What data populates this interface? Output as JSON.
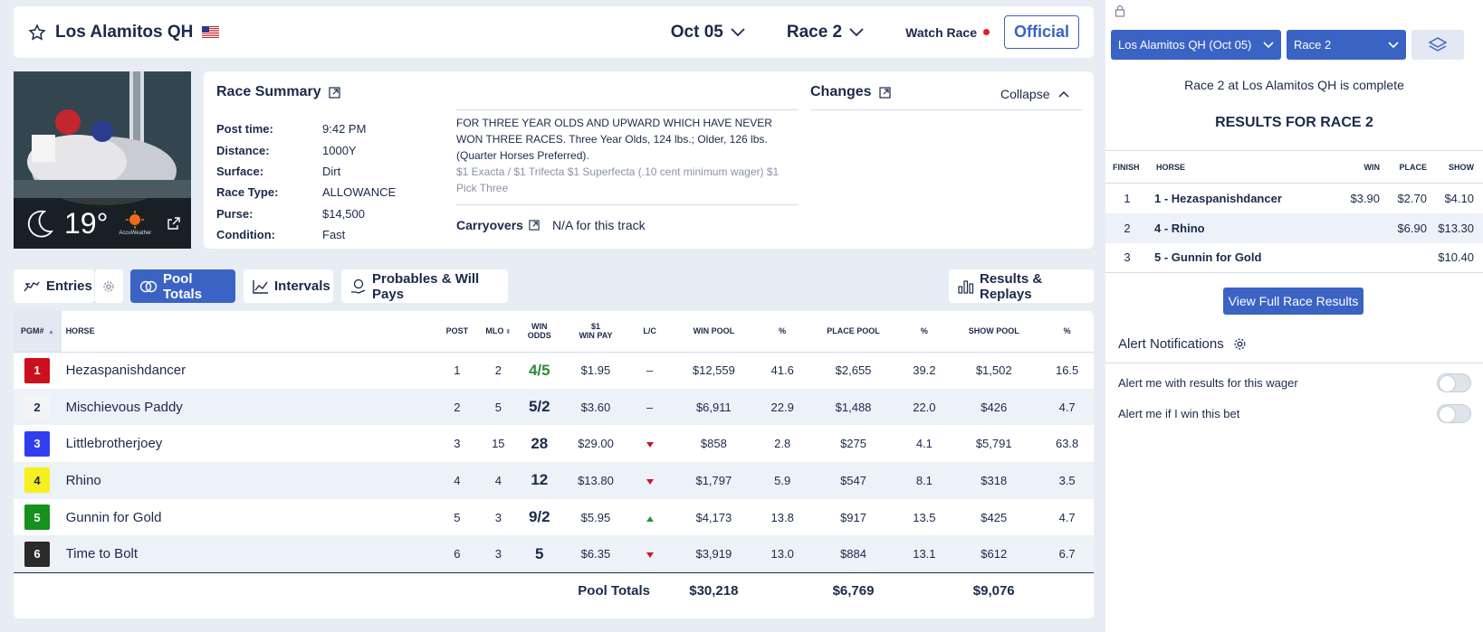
{
  "header": {
    "track": "Los Alamitos QH",
    "date": "Oct 05",
    "race": "Race 2",
    "watch_label": "Watch Race",
    "official_label": "Official"
  },
  "weather": {
    "temp": "19°",
    "brand": "AccuWeather"
  },
  "summary": {
    "title": "Race Summary",
    "fields": [
      {
        "k": "Post time:",
        "v": "9:42 PM"
      },
      {
        "k": "Distance:",
        "v": "1000Y"
      },
      {
        "k": "Surface:",
        "v": "Dirt"
      },
      {
        "k": "Race Type:",
        "v": "ALLOWANCE"
      },
      {
        "k": "Purse:",
        "v": "$14,500"
      },
      {
        "k": "Condition:",
        "v": "Fast"
      }
    ],
    "description": "FOR THREE YEAR OLDS AND UPWARD WHICH HAVE NEVER WON THREE RACES. Three Year Olds, 124 lbs.; Older, 126 lbs. (Quarter Horses Preferred).",
    "description_more": "$1 Exacta / $1 Trifecta $1 Superfecta (.10 cent minimum wager) $1 Pick Three",
    "carryovers_label": "Carryovers",
    "carryovers_value": "N/A for this track",
    "changes_title": "Changes",
    "collapse_label": "Collapse"
  },
  "tabs": {
    "entries": "Entries",
    "pool_totals": "Pool Totals",
    "intervals": "Intervals",
    "probables": "Probables & Will Pays",
    "results": "Results & Replays"
  },
  "pool": {
    "headers": {
      "pgm": "PGM#",
      "horse": "HORSE",
      "post": "POST",
      "mlo": "MLO",
      "win_odds_1": "WIN",
      "win_odds_2": "ODDS",
      "winpay_1": "$1",
      "winpay_2": "WIN PAY",
      "lc": "L/C",
      "win_pool": "WIN POOL",
      "pct": "%",
      "place_pool": "PLACE POOL",
      "show_pool": "SHOW POOL"
    },
    "rows": [
      {
        "pgm": "1",
        "bg": "#cc0f1c",
        "fg": "#ffffff",
        "horse": "Hezaspanishdancer",
        "post": "1",
        "mlo": "2",
        "odds": "4/5",
        "winpay": "$1.95",
        "lc": "–",
        "win": "$12,559",
        "winp": "41.6",
        "place": "$2,655",
        "placep": "39.2",
        "show": "$1,502",
        "showp": "16.5"
      },
      {
        "pgm": "2",
        "bg": "#f4f4f4",
        "fg": "#1b2a4a",
        "horse": "Mischievous Paddy",
        "post": "2",
        "mlo": "5",
        "odds": "5/2",
        "winpay": "$3.60",
        "lc": "–",
        "win": "$6,911",
        "winp": "22.9",
        "place": "$1,488",
        "placep": "22.0",
        "show": "$426",
        "showp": "4.7"
      },
      {
        "pgm": "3",
        "bg": "#2f3ff0",
        "fg": "#ffffff",
        "horse": "Littlebrotherjoey",
        "post": "3",
        "mlo": "15",
        "odds": "28",
        "winpay": "$29.00",
        "lc": "down",
        "win": "$858",
        "winp": "2.8",
        "place": "$275",
        "placep": "4.1",
        "show": "$5,791",
        "showp": "63.8"
      },
      {
        "pgm": "4",
        "bg": "#f6f01e",
        "fg": "#1b2a4a",
        "horse": "Rhino",
        "post": "4",
        "mlo": "4",
        "odds": "12",
        "winpay": "$13.80",
        "lc": "down",
        "win": "$1,797",
        "winp": "5.9",
        "place": "$547",
        "placep": "8.1",
        "show": "$318",
        "showp": "3.5"
      },
      {
        "pgm": "5",
        "bg": "#16911c",
        "fg": "#ffffff",
        "horse": "Gunnin for Gold",
        "post": "5",
        "mlo": "3",
        "odds": "9/2",
        "winpay": "$5.95",
        "lc": "up",
        "win": "$4,173",
        "winp": "13.8",
        "place": "$917",
        "placep": "13.5",
        "show": "$425",
        "showp": "4.7"
      },
      {
        "pgm": "6",
        "bg": "#2a2a2a",
        "fg": "#ffffff",
        "horse": "Time to Bolt",
        "post": "6",
        "mlo": "3",
        "odds": "5",
        "winpay": "$6.35",
        "lc": "down",
        "win": "$3,919",
        "winp": "13.0",
        "place": "$884",
        "placep": "13.1",
        "show": "$612",
        "showp": "6.7"
      }
    ],
    "totals": {
      "label": "Pool Totals",
      "win": "$30,218",
      "place": "$6,769",
      "show": "$9,076"
    }
  },
  "right": {
    "track_select": "Los Alamitos QH (Oct 05)",
    "race_select": "Race 2",
    "complete_msg": "Race 2 at Los Alamitos QH is complete",
    "results_title": "RESULTS FOR RACE 2",
    "headers": {
      "finish": "FINISH",
      "horse": "HORSE",
      "win": "WIN",
      "place": "PLACE",
      "show": "SHOW"
    },
    "results": [
      {
        "fin": "1",
        "horse": "1 - Hezaspanishdancer",
        "win": "$3.90",
        "place": "$2.70",
        "show": "$4.10"
      },
      {
        "fin": "2",
        "horse": "4 - Rhino",
        "win": "",
        "place": "$6.90",
        "show": "$13.30"
      },
      {
        "fin": "3",
        "horse": "5 - Gunnin for Gold",
        "win": "",
        "place": "",
        "show": "$10.40"
      }
    ],
    "view_full": "View Full Race Results",
    "alert_title": "Alert Notifications",
    "alert_1": "Alert me with results for this wager",
    "alert_2": "Alert me if I win this bet"
  }
}
